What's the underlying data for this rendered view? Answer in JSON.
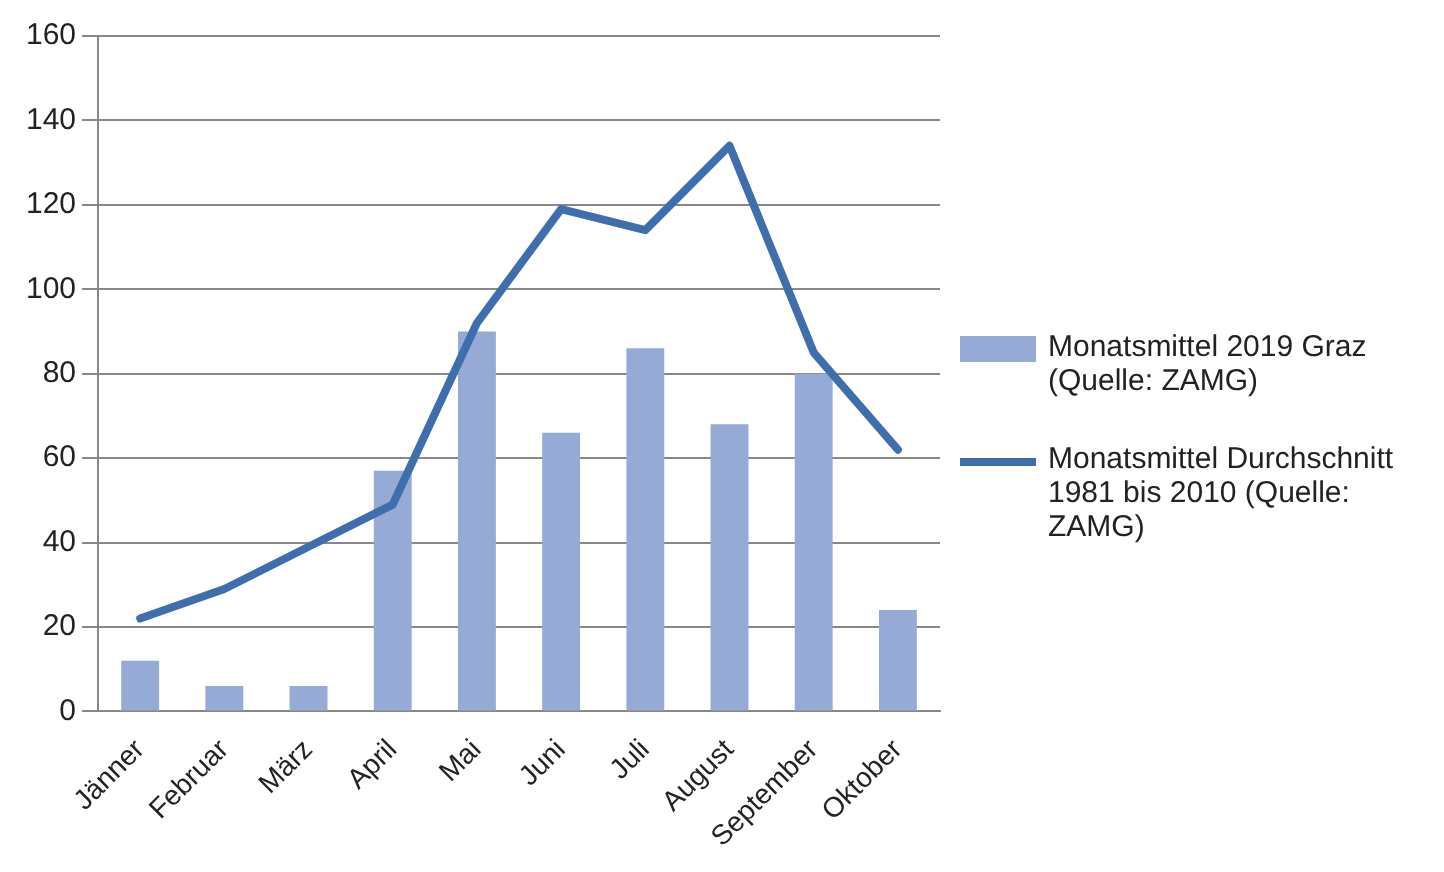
{
  "chart_data": {
    "type": "bar",
    "categories": [
      "Jänner",
      "Februar",
      "März",
      "April",
      "Mai",
      "Juni",
      "Juli",
      "August",
      "September",
      "Oktober"
    ],
    "series": [
      {
        "name": "Monatsmittel 2019 Graz (Quelle: ZAMG)",
        "color": "#95abd6",
        "values": [
          12,
          6,
          6,
          57,
          90,
          66,
          86,
          68,
          80,
          24
        ]
      },
      {
        "name": "Monatsmittel Durchschnitt 1981 bis 2010 (Quelle: ZAMG)",
        "type": "line",
        "color": "#3e6eac",
        "values": [
          22,
          29,
          39,
          49,
          92,
          119,
          114,
          134,
          85,
          62
        ]
      }
    ],
    "ylim": [
      0,
      160
    ],
    "yticks": [
      0,
      20,
      40,
      60,
      80,
      100,
      120,
      140,
      160
    ],
    "grid": "y",
    "legend": "right",
    "marker": "none"
  }
}
